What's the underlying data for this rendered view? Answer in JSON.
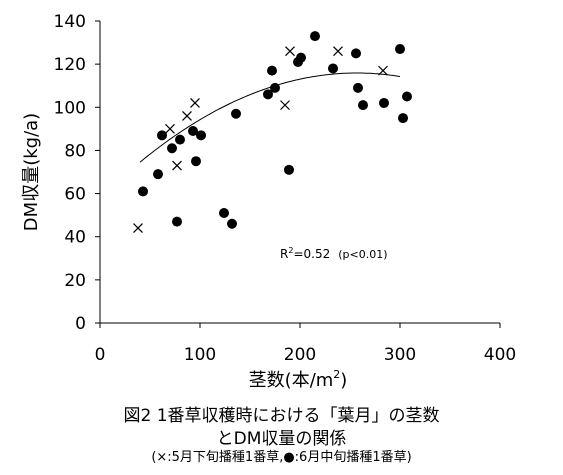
{
  "chart_data": {
    "type": "scatter",
    "title": "",
    "xlabel": "茎数(本/m²)",
    "ylabel": "DM収量(kg/a)",
    "xlim": [
      0,
      400
    ],
    "ylim": [
      0,
      140
    ],
    "x_ticks": [
      0,
      100,
      200,
      300,
      400
    ],
    "y_ticks": [
      0,
      20,
      40,
      60,
      80,
      100,
      120,
      140
    ],
    "grid": false,
    "legend": "none",
    "series": [
      {
        "marker": "×",
        "color": "#000000",
        "points": [
          [
            38,
            44
          ],
          [
            70,
            90
          ],
          [
            77,
            73
          ],
          [
            87,
            96
          ],
          [
            95,
            102
          ],
          [
            185,
            101
          ],
          [
            190,
            126
          ],
          [
            238,
            126
          ],
          [
            283,
            117
          ]
        ]
      },
      {
        "marker": "●",
        "color": "#000000",
        "points": [
          [
            43,
            61
          ],
          [
            58,
            69
          ],
          [
            62,
            87
          ],
          [
            72,
            81
          ],
          [
            77,
            47
          ],
          [
            80,
            85
          ],
          [
            93,
            89
          ],
          [
            96,
            75
          ],
          [
            101,
            87
          ],
          [
            124,
            51
          ],
          [
            132,
            46
          ],
          [
            136,
            97
          ],
          [
            168,
            106
          ],
          [
            172,
            117
          ],
          [
            175,
            109
          ],
          [
            189,
            71
          ],
          [
            198,
            121
          ],
          [
            201,
            123
          ],
          [
            215,
            133
          ],
          [
            233,
            118
          ],
          [
            256,
            125
          ],
          [
            258,
            109
          ],
          [
            263,
            101
          ],
          [
            284,
            102
          ],
          [
            300,
            127
          ],
          [
            303,
            95
          ],
          [
            307,
            105
          ]
        ]
      }
    ],
    "trendline": {
      "type": "quadratic",
      "x_range": [
        40,
        300
      ],
      "coefficients": {
        "a": -0.000879,
        "b": 0.4516,
        "c": 57.89
      }
    },
    "annotation": "R²=0.52 (p<0.01)"
  },
  "annotation_parts": {
    "r": "R",
    "r_exp": "2",
    "value": "=0.52",
    "p": "(p<0.01)"
  },
  "xlabel_parts": {
    "main": "茎数(本/m",
    "exp": "2",
    "close": ")"
  },
  "caption": {
    "line1": "図2 1番草収穫時における「葉月」の茎数",
    "line2": "とDM収量の関係",
    "line3": "(×:5月下旬播種1番草,●:6月中旬播種1番草)"
  }
}
